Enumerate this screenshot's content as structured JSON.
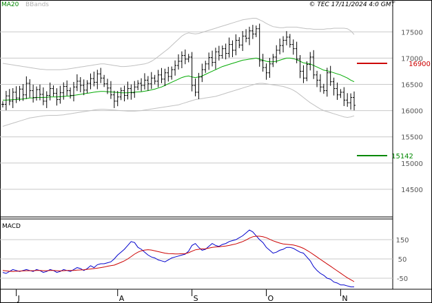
{
  "header": {
    "legend_ma": "MA20",
    "legend_bb": "BBands",
    "copyright": "© TEC 17/11/2024 4:0 GMT"
  },
  "colors": {
    "ma": "#00aa00",
    "bbands": "#c0c0c0",
    "bars": "#000000",
    "resistance": "#cc0000",
    "support": "#008800",
    "macd": "#0000cc",
    "signal": "#cc0000",
    "grid": "#c8c8c8"
  },
  "chart_data": [
    {
      "type": "ohlc",
      "ylim": [
        14000,
        17950
      ],
      "yticks": [
        {
          "value": 14500,
          "label": "14500"
        },
        {
          "value": 15000,
          "label": "15000"
        },
        {
          "value": 15500,
          "label": "15500"
        },
        {
          "value": 16000,
          "label": "16000"
        },
        {
          "value": 16500,
          "label": "16500"
        },
        {
          "value": 17000,
          "label": "17000"
        },
        {
          "value": 17500,
          "label": "17500"
        }
      ],
      "resistance": {
        "value": 16900,
        "label": "16900"
      },
      "support": {
        "value": 15142,
        "label": "15142"
      },
      "close": [
        16120,
        16280,
        16180,
        16350,
        16240,
        16410,
        16300,
        16520,
        16380,
        16250,
        16400,
        16310,
        16180,
        16290,
        16420,
        16330,
        16210,
        16340,
        16460,
        16380,
        16290,
        16450,
        16560,
        16480,
        16390,
        16520,
        16610,
        16540,
        16700,
        16620,
        16510,
        16430,
        16300,
        16180,
        16260,
        16380,
        16290,
        16420,
        16340,
        16450,
        16520,
        16480,
        16580,
        16510,
        16620,
        16560,
        16680,
        16600,
        16720,
        16650,
        16780,
        16860,
        16940,
        17050,
        16980,
        17020,
        16480,
        16350,
        16640,
        16780,
        16890,
        17010,
        16920,
        17120,
        17050,
        17180,
        17090,
        17260,
        17150,
        17340,
        17250,
        17420,
        17380,
        17520,
        17460,
        17560,
        16950,
        16820,
        16720,
        16890,
        17020,
        17150,
        17240,
        17340,
        17400,
        17260,
        17180,
        16980,
        16750,
        16620,
        16880,
        17020,
        16680,
        16580,
        16450,
        16380,
        16720,
        16550,
        16420,
        16300,
        16350,
        16200,
        16150,
        16250,
        16100
      ],
      "ma20": [
        16200,
        16200,
        16205,
        16210,
        16210,
        16215,
        16220,
        16230,
        16240,
        16240,
        16250,
        16250,
        16250,
        16255,
        16260,
        16260,
        16260,
        16265,
        16270,
        16275,
        16280,
        16290,
        16300,
        16310,
        16320,
        16330,
        16340,
        16350,
        16360,
        16365,
        16365,
        16360,
        16355,
        16350,
        16345,
        16340,
        16340,
        16340,
        16345,
        16350,
        16355,
        16360,
        16370,
        16380,
        16395,
        16410,
        16430,
        16450,
        16480,
        16510,
        16540,
        16570,
        16600,
        16630,
        16650,
        16660,
        16640,
        16630,
        16640,
        16660,
        16690,
        16720,
        16750,
        16780,
        16810,
        16840,
        16860,
        16880,
        16900,
        16920,
        16940,
        16960,
        16970,
        16980,
        16990,
        17000,
        16980,
        16960,
        16940,
        16930,
        16930,
        16940,
        16960,
        16980,
        17000,
        17000,
        16990,
        16970,
        16940,
        16910,
        16900,
        16890,
        16860,
        16830,
        16800,
        16770,
        16760,
        16740,
        16720,
        16700,
        16680,
        16650,
        16620,
        16580,
        16550
      ],
      "bb_upper": [
        16900,
        16890,
        16880,
        16870,
        16860,
        16850,
        16840,
        16830,
        16820,
        16810,
        16800,
        16790,
        16785,
        16780,
        16780,
        16780,
        16780,
        16780,
        16785,
        16790,
        16800,
        16810,
        16820,
        16830,
        16840,
        16850,
        16860,
        16870,
        16880,
        16890,
        16890,
        16880,
        16870,
        16860,
        16850,
        16840,
        16840,
        16845,
        16850,
        16860,
        16870,
        16880,
        16890,
        16910,
        16940,
        16980,
        17030,
        17080,
        17130,
        17180,
        17240,
        17300,
        17360,
        17420,
        17460,
        17480,
        17470,
        17460,
        17470,
        17490,
        17510,
        17530,
        17550,
        17570,
        17590,
        17610,
        17630,
        17650,
        17670,
        17690,
        17710,
        17730,
        17740,
        17750,
        17760,
        17760,
        17730,
        17700,
        17660,
        17630,
        17600,
        17590,
        17580,
        17580,
        17590,
        17590,
        17590,
        17590,
        17580,
        17570,
        17560,
        17560,
        17550,
        17550,
        17550,
        17550,
        17560,
        17560,
        17570,
        17570,
        17570,
        17570,
        17560,
        17520,
        17450
      ],
      "bb_lower": [
        15700,
        15720,
        15740,
        15760,
        15780,
        15800,
        15820,
        15840,
        15860,
        15870,
        15880,
        15890,
        15900,
        15905,
        15910,
        15910,
        15910,
        15915,
        15920,
        15930,
        15940,
        15950,
        15960,
        15970,
        15980,
        15990,
        16000,
        16010,
        16020,
        16025,
        16025,
        16020,
        16015,
        16010,
        16005,
        16000,
        15995,
        15990,
        15990,
        15990,
        15995,
        16000,
        16010,
        16020,
        16030,
        16040,
        16050,
        16060,
        16070,
        16080,
        16090,
        16100,
        16110,
        16130,
        16150,
        16170,
        16190,
        16210,
        16220,
        16230,
        16240,
        16250,
        16260,
        16270,
        16290,
        16310,
        16330,
        16350,
        16370,
        16390,
        16410,
        16430,
        16450,
        16470,
        16490,
        16510,
        16520,
        16520,
        16510,
        16500,
        16490,
        16480,
        16470,
        16460,
        16440,
        16420,
        16390,
        16350,
        16300,
        16250,
        16200,
        16150,
        16110,
        16070,
        16030,
        16000,
        15980,
        15960,
        15940,
        15920,
        15900,
        15880,
        15870,
        15880,
        15900
      ]
    },
    {
      "type": "line",
      "title": "MACD",
      "ylim": [
        -100,
        250
      ],
      "yticks": [
        {
          "value": 150,
          "label": "150"
        },
        {
          "value": 50,
          "label": "50"
        },
        {
          "value": -50,
          "label": "-50"
        }
      ],
      "series": [
        {
          "values": [
            -20,
            -25,
            -15,
            -5,
            -10,
            -15,
            -10,
            -5,
            -10,
            -15,
            -5,
            -10,
            -20,
            -15,
            -5,
            -10,
            -20,
            -15,
            -5,
            -10,
            -15,
            -5,
            5,
            0,
            -10,
            0,
            15,
            5,
            20,
            25,
            25,
            30,
            35,
            50,
            70,
            85,
            100,
            120,
            140,
            135,
            110,
            100,
            85,
            70,
            60,
            55,
            45,
            40,
            35,
            45,
            55,
            60,
            65,
            70,
            75,
            90,
            120,
            130,
            110,
            95,
            100,
            115,
            130,
            120,
            115,
            125,
            130,
            140,
            145,
            150,
            160,
            170,
            185,
            200,
            190,
            170,
            150,
            135,
            110,
            95,
            80,
            85,
            95,
            100,
            110,
            110,
            105,
            95,
            85,
            80,
            60,
            40,
            10,
            -10,
            -25,
            -35,
            -50,
            -55,
            -70,
            -75,
            -85,
            -85,
            -90,
            -95,
            -95
          ]
        },
        {
          "values": [
            -10,
            -12,
            -14,
            -15,
            -14,
            -13,
            -12,
            -11,
            -11,
            -11,
            -10,
            -10,
            -11,
            -11,
            -10,
            -10,
            -11,
            -12,
            -11,
            -10,
            -10,
            -10,
            -8,
            -7,
            -6,
            -4,
            -2,
            0,
            2,
            5,
            8,
            12,
            15,
            18,
            25,
            32,
            40,
            50,
            62,
            75,
            85,
            92,
            96,
            98,
            96,
            92,
            88,
            84,
            80,
            78,
            77,
            76,
            76,
            77,
            78,
            82,
            90,
            97,
            100,
            102,
            103,
            106,
            110,
            112,
            113,
            115,
            117,
            120,
            124,
            128,
            134,
            140,
            148,
            158,
            165,
            168,
            168,
            165,
            160,
            152,
            144,
            138,
            132,
            128,
            126,
            124,
            122,
            118,
            112,
            105,
            95,
            84,
            72,
            60,
            48,
            36,
            24,
            12,
            0,
            -12,
            -24,
            -36,
            -48,
            -58,
            -68
          ]
        }
      ]
    }
  ],
  "x_axis": {
    "months": [
      {
        "label": "J",
        "index": 4
      },
      {
        "label": "A",
        "index": 34
      },
      {
        "label": "S",
        "index": 56
      },
      {
        "label": "O",
        "index": 78
      },
      {
        "label": "N",
        "index": 100
      }
    ]
  }
}
